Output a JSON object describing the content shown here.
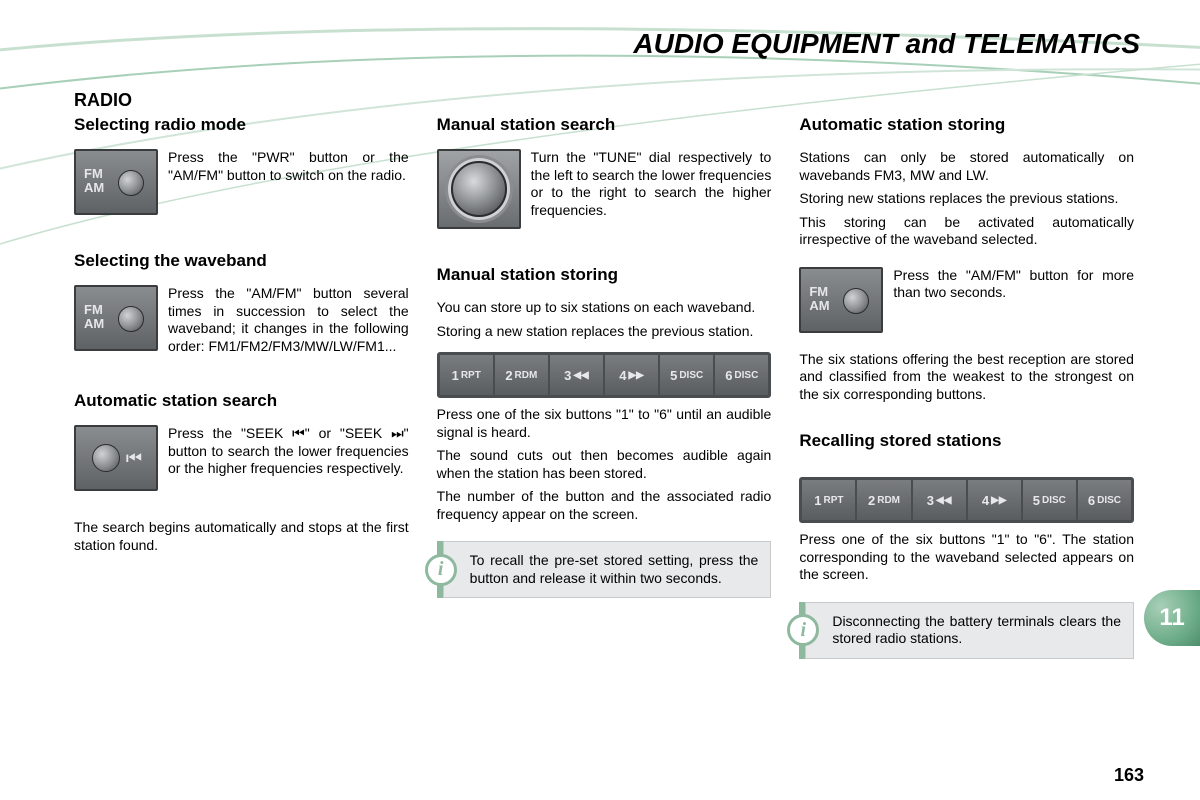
{
  "header": "AUDIO EQUIPMENT and TELEMATICS",
  "section": "RADIO",
  "chapter_tab": "11",
  "page_number": "163",
  "swoosh_colors": [
    "#c8e0d0",
    "#a8cfb8",
    "#d0e4d8"
  ],
  "preset_buttons": [
    {
      "num": "1",
      "lbl": "RPT"
    },
    {
      "num": "2",
      "lbl": "RDM"
    },
    {
      "num": "3",
      "lbl": "◀◀"
    },
    {
      "num": "4",
      "lbl": "▶▶"
    },
    {
      "num": "5",
      "lbl": "DISC"
    },
    {
      "num": "6",
      "lbl": "DISC"
    }
  ],
  "col1": {
    "h1": "Selecting radio mode",
    "p1": "Press the \"PWR\" button or the \"AM/FM\" button to switch on the radio.",
    "h2": "Selecting the waveband",
    "p2": "Press the \"AM/FM\" button several times in succession to select the waveband; it changes in the following order: FM1/FM2/FM3/MW/LW/FM1...",
    "h3": "Automatic station search",
    "p3a": "Press the \"SEEK ",
    "p3b": "\" or \"SEEK ",
    "p3c": "\" button to search the lower frequencies or the higher frequencies respectively.",
    "seek_back": "⏮",
    "seek_fwd": "⏭",
    "p4": "The search begins automatically and stops at the first station found."
  },
  "col2": {
    "h1": "Manual station search",
    "p1": "Turn the \"TUNE\" dial respectively to the left to search the lower frequencies or to the right to search the higher frequencies.",
    "h2": "Manual station storing",
    "p2": "You can store up to six stations on each waveband.",
    "p3": "Storing a new station replaces the previous station.",
    "p4": "Press one of the six buttons \"1\" to \"6\" until an audible signal is heard.",
    "p5": "The sound cuts out then becomes audible again when the station has been stored.",
    "p6": "The number of the button and the associated radio frequency appear on the screen.",
    "info": "To recall the pre-set stored setting, press the button and release it within two seconds."
  },
  "col3": {
    "h1": "Automatic station storing",
    "p1": "Stations can only be stored automatically on wavebands FM3, MW and LW.",
    "p2": "Storing new stations replaces the previous stations.",
    "p3": "This storing can be activated automatically irrespective of the waveband selected.",
    "p4": "Press the \"AM/FM\" button for more than two seconds.",
    "p5": "The six stations offering the best reception are stored and classified from the weakest to the strongest on the six corresponding buttons.",
    "h2": "Recalling stored stations",
    "p6": "Press one of the six buttons \"1\" to \"6\". The station corresponding to the waveband selected appears on the screen.",
    "info": "Disconnecting the battery terminals clears the stored radio stations."
  }
}
